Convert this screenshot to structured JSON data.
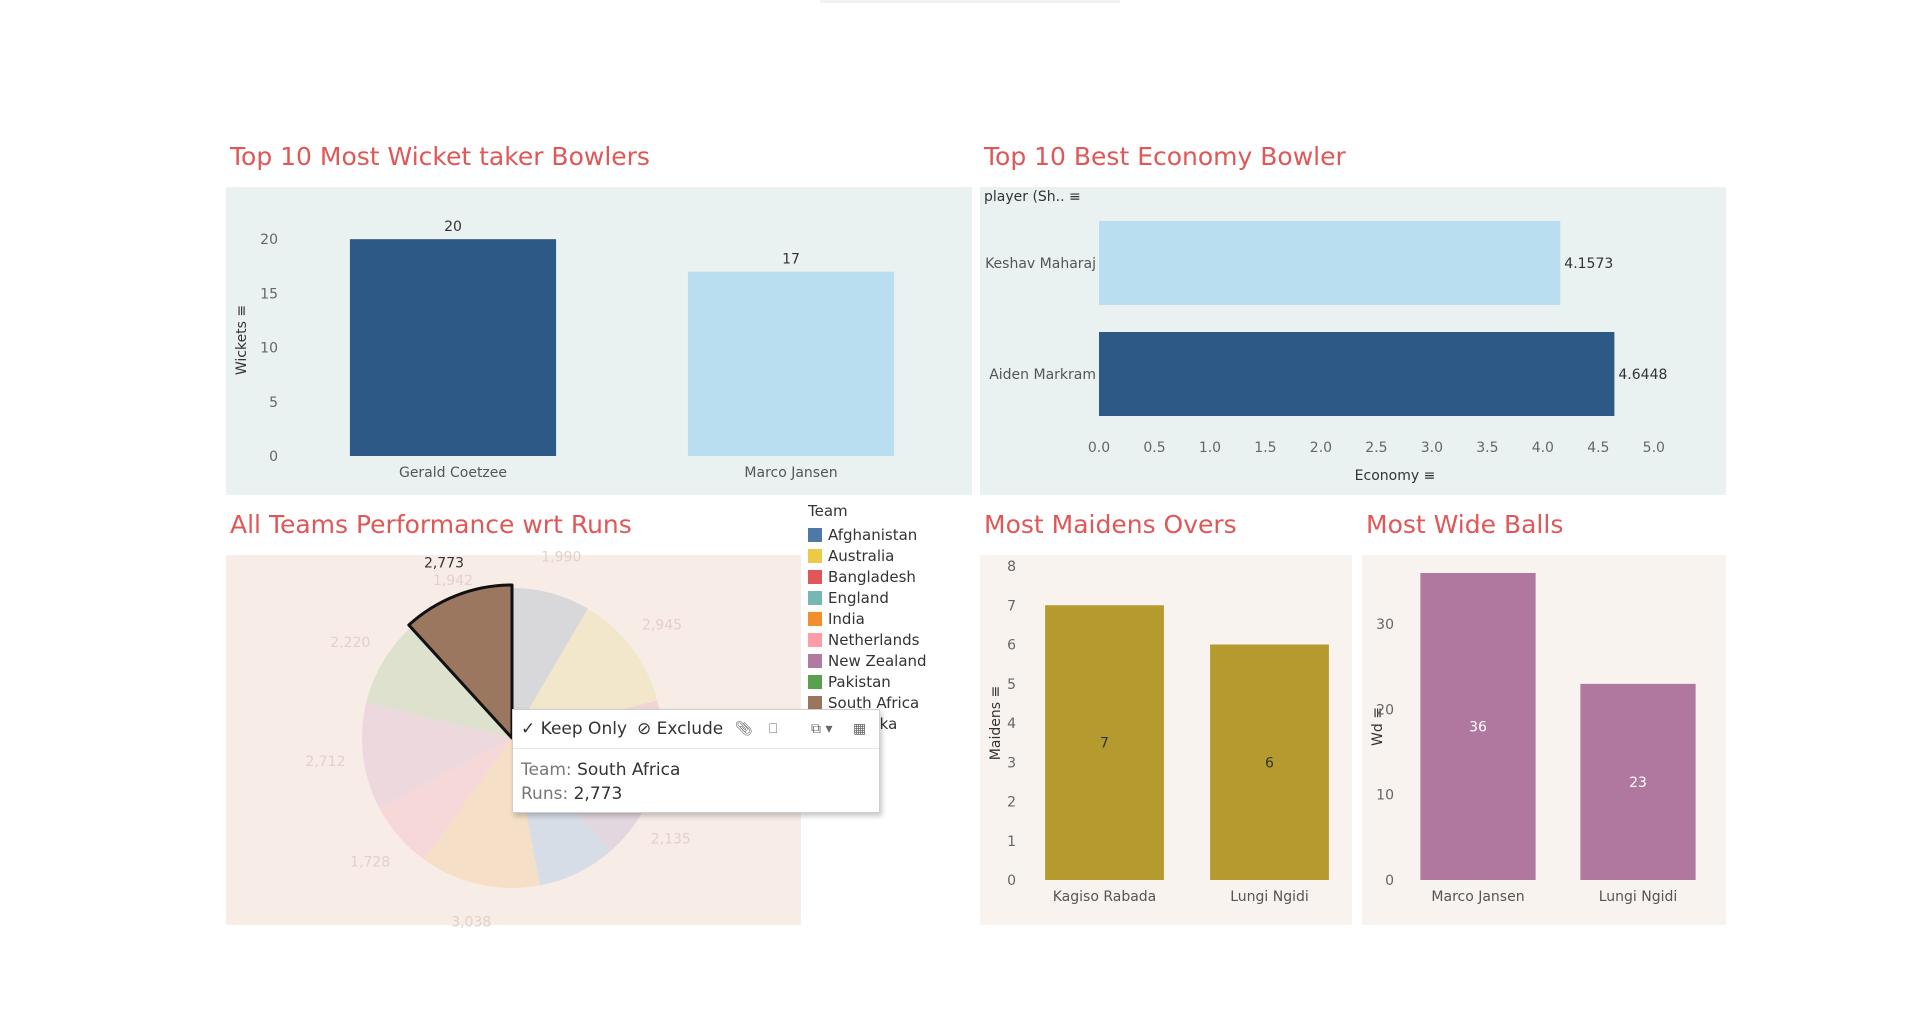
{
  "titles": {
    "wickets": "Top 10 Most Wicket taker Bowlers",
    "economy": "Top 10 Best Economy Bowler",
    "runs": "All Teams Performance wrt Runs",
    "maidens": "Most Maidens Overs",
    "wides": "Most Wide Balls"
  },
  "chart_data": [
    {
      "id": "wickets",
      "type": "bar",
      "title": "Top 10 Most Wicket taker Bowlers",
      "categories": [
        "Gerald Coetzee",
        "Marco Jansen"
      ],
      "values": [
        20,
        17
      ],
      "ylabel": "Wickets",
      "ylim": [
        0,
        21.4
      ],
      "yticks": [
        0,
        5,
        10,
        15,
        20
      ],
      "grid": false,
      "colors": [
        "#2c5985",
        "#b9def0"
      ]
    },
    {
      "id": "economy",
      "type": "bar",
      "orientation": "horizontal",
      "title": "Top 10 Best Economy Bowler",
      "categories": [
        "Keshav Maharaj",
        "Aiden Markram"
      ],
      "values": [
        4.1573,
        4.6448
      ],
      "xlabel": "Economy",
      "ylabel": "player (Sh..",
      "xlim": [
        0,
        5.2
      ],
      "xticks": [
        0.0,
        0.5,
        1.0,
        1.5,
        2.0,
        2.5,
        3.0,
        3.5,
        4.0,
        4.5,
        5.0
      ],
      "colors": [
        "#b9def0",
        "#2c5985"
      ]
    },
    {
      "id": "runs",
      "type": "pie",
      "title": "All Teams Performance wrt Runs",
      "legend_title": "Team",
      "legend": "right",
      "labels": [
        "England",
        "Australia",
        "Bangladesh",
        "New Zealand",
        "Afghanistan",
        "India",
        "Netherlands",
        "Pakistan",
        "Sri Lanka",
        "South Africa"
      ],
      "values": [
        1990,
        2945,
        2000,
        2135,
        2000,
        3038,
        1728,
        2712,
        2220,
        2773
      ],
      "value_labels": [
        "1,990",
        "2,945",
        "",
        "2,135",
        "",
        "3,038",
        "1,728",
        "2,712",
        "2,220",
        "2,773"
      ],
      "slice_colors": [
        "#d8d8da",
        "#f3e7cb",
        "#f2d4d4",
        "#e2d7df",
        "#d7dde6",
        "#f5dfc6",
        "#f6d8d8",
        "#ecd8dd",
        "#dfe1cf",
        "#9c7760"
      ],
      "extra_label": "1,942",
      "highlighted": "South Africa"
    },
    {
      "id": "maidens",
      "type": "bar",
      "title": "Most Maidens Overs",
      "categories": [
        "Kagiso Rabada",
        "Lungi Ngidi"
      ],
      "values": [
        7,
        6
      ],
      "ylabel": "Maidens",
      "ylim": [
        0,
        8
      ],
      "yticks": [
        0,
        1,
        2,
        3,
        4,
        5,
        6,
        7,
        8
      ],
      "colors": [
        "#b59a2d",
        "#b59a2d"
      ]
    },
    {
      "id": "wides",
      "type": "bar",
      "title": "Most Wide Balls",
      "categories": [
        "Marco Jansen",
        "Lungi Ngidi"
      ],
      "values": [
        36,
        23
      ],
      "ylabel": "Wd",
      "ylim": [
        0,
        36
      ],
      "yticks": [
        0,
        10,
        20,
        30
      ],
      "colors": [
        "#b0779f",
        "#b0779f"
      ]
    }
  ],
  "legend": {
    "title": "Team",
    "items": [
      {
        "label": "Afghanistan",
        "color": "#4e79a7"
      },
      {
        "label": "Australia",
        "color": "#edc948"
      },
      {
        "label": "Bangladesh",
        "color": "#e15759"
      },
      {
        "label": "England",
        "color": "#76b7b2"
      },
      {
        "label": "India",
        "color": "#f28e2b"
      },
      {
        "label": "Netherlands",
        "color": "#ff9da7"
      },
      {
        "label": "New Zealand",
        "color": "#b07aa1"
      },
      {
        "label": "Pakistan",
        "color": "#59a14f"
      },
      {
        "label": "South Africa",
        "color": "#9c755f"
      },
      {
        "label": "Sri Lanka",
        "color": "#bab0ac"
      }
    ]
  },
  "tooltip": {
    "keep_only": "✓ Keep Only",
    "exclude": "⊘ Exclude",
    "team_key": "Team:",
    "team_val": "South Africa",
    "runs_key": "Runs:",
    "runs_val": "2,773"
  },
  "colors": {
    "title": "#e05757",
    "panel_teal": "#e9f2f1",
    "panel_beige": "#f8f3ef",
    "panel_pink": "#f8ece7"
  }
}
